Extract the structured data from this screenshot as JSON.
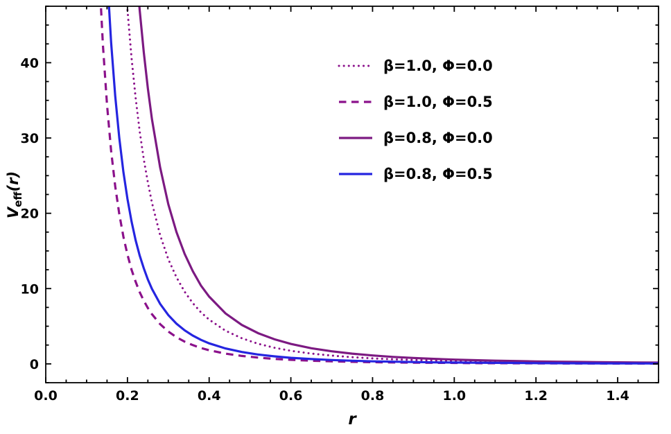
{
  "figure": {
    "background": "#ffffff",
    "frame_color": "#000000"
  },
  "chart_data": {
    "type": "line",
    "title": "",
    "xlabel": "r",
    "ylabel_main": "V",
    "ylabel_sub": "eff",
    "ylabel_suffix": "(r)",
    "xlim": [
      0,
      1.5
    ],
    "ylim": [
      -2.5,
      47.5
    ],
    "grid": false,
    "frame": true,
    "legend_position": "upper-right-inside",
    "xtick_minor_step": 0.05,
    "ytick_minor_step": 2.5,
    "xticks": [
      {
        "v": 0.0,
        "label": "0.0"
      },
      {
        "v": 0.2,
        "label": "0.2"
      },
      {
        "v": 0.4,
        "label": "0.4"
      },
      {
        "v": 0.6,
        "label": "0.6"
      },
      {
        "v": 0.8,
        "label": "0.8"
      },
      {
        "v": 1.0,
        "label": "1.0"
      },
      {
        "v": 1.2,
        "label": "1.2"
      },
      {
        "v": 1.4,
        "label": "1.4"
      }
    ],
    "yticks": [
      {
        "v": 0,
        "label": "0"
      },
      {
        "v": 10,
        "label": "10"
      },
      {
        "v": 20,
        "label": "20"
      },
      {
        "v": 30,
        "label": "30"
      },
      {
        "v": 40,
        "label": "40"
      }
    ],
    "series": [
      {
        "name": "beta-1.0-phi-0.0",
        "label": "β=1.0, Φ=0.0",
        "color": "#8B118B",
        "style": "dotted",
        "width": 3,
        "points": [
          [
            0.15,
            111
          ],
          [
            0.16,
            91.8
          ],
          [
            0.17,
            76.5
          ],
          [
            0.18,
            64.5
          ],
          [
            0.19,
            54.8
          ],
          [
            0.2,
            47.0
          ],
          [
            0.21,
            40.6
          ],
          [
            0.22,
            35.3
          ],
          [
            0.23,
            30.9
          ],
          [
            0.24,
            27.2
          ],
          [
            0.25,
            24.1
          ],
          [
            0.26,
            21.4
          ],
          [
            0.28,
            17.1
          ],
          [
            0.3,
            13.9
          ],
          [
            0.32,
            11.5
          ],
          [
            0.34,
            9.57
          ],
          [
            0.36,
            8.06
          ],
          [
            0.38,
            6.85
          ],
          [
            0.4,
            5.88
          ],
          [
            0.44,
            4.41
          ],
          [
            0.48,
            3.4
          ],
          [
            0.52,
            2.67
          ],
          [
            0.56,
            2.14
          ],
          [
            0.6,
            1.74
          ],
          [
            0.65,
            1.37
          ],
          [
            0.7,
            1.1
          ],
          [
            0.75,
            0.89
          ],
          [
            0.8,
            0.73
          ],
          [
            0.85,
            0.61
          ],
          [
            0.9,
            0.52
          ],
          [
            0.95,
            0.44
          ],
          [
            1.0,
            0.38
          ],
          [
            1.05,
            0.33
          ],
          [
            1.1,
            0.28
          ],
          [
            1.15,
            0.25
          ],
          [
            1.2,
            0.22
          ],
          [
            1.25,
            0.19
          ],
          [
            1.3,
            0.17
          ],
          [
            1.35,
            0.15
          ],
          [
            1.4,
            0.14
          ],
          [
            1.45,
            0.12
          ],
          [
            1.5,
            0.11
          ]
        ]
      },
      {
        "name": "beta-1.0-phi-0.5",
        "label": "β=1.0, Φ=0.5",
        "color": "#8B118B",
        "style": "dashed",
        "width": 3.2,
        "points": [
          [
            0.12,
            67.1
          ],
          [
            0.13,
            52.8
          ],
          [
            0.14,
            42.3
          ],
          [
            0.15,
            34.4
          ],
          [
            0.16,
            28.3
          ],
          [
            0.17,
            23.6
          ],
          [
            0.18,
            19.9
          ],
          [
            0.19,
            16.9
          ],
          [
            0.2,
            14.5
          ],
          [
            0.21,
            12.5
          ],
          [
            0.22,
            10.9
          ],
          [
            0.23,
            9.53
          ],
          [
            0.24,
            8.39
          ],
          [
            0.25,
            7.42
          ],
          [
            0.26,
            6.6
          ],
          [
            0.28,
            5.28
          ],
          [
            0.3,
            4.3
          ],
          [
            0.32,
            3.54
          ],
          [
            0.34,
            2.95
          ],
          [
            0.36,
            2.49
          ],
          [
            0.38,
            2.11
          ],
          [
            0.4,
            1.81
          ],
          [
            0.44,
            1.36
          ],
          [
            0.48,
            1.05
          ],
          [
            0.52,
            0.83
          ],
          [
            0.56,
            0.66
          ],
          [
            0.6,
            0.54
          ],
          [
            0.65,
            0.42
          ],
          [
            0.7,
            0.34
          ],
          [
            0.75,
            0.27
          ],
          [
            0.8,
            0.23
          ],
          [
            0.85,
            0.19
          ],
          [
            0.9,
            0.16
          ],
          [
            0.95,
            0.14
          ],
          [
            1.0,
            0.12
          ],
          [
            1.05,
            0.1
          ],
          [
            1.1,
            0.09
          ],
          [
            1.15,
            0.08
          ],
          [
            1.2,
            0.07
          ],
          [
            1.25,
            0.06
          ],
          [
            1.3,
            0.05
          ],
          [
            1.35,
            0.05
          ],
          [
            1.4,
            0.04
          ],
          [
            1.45,
            0.04
          ],
          [
            1.5,
            0.03
          ]
        ]
      },
      {
        "name": "beta-0.8-phi-0.0",
        "label": "β=0.8, Φ=0.0",
        "color": "#7C1A82",
        "style": "solid",
        "width": 3.2,
        "points": [
          [
            0.18,
            98.1
          ],
          [
            0.19,
            83.4
          ],
          [
            0.2,
            71.5
          ],
          [
            0.21,
            61.8
          ],
          [
            0.22,
            53.7
          ],
          [
            0.23,
            47.0
          ],
          [
            0.24,
            41.4
          ],
          [
            0.25,
            36.6
          ],
          [
            0.26,
            32.5
          ],
          [
            0.28,
            26.1
          ],
          [
            0.3,
            21.2
          ],
          [
            0.32,
            17.5
          ],
          [
            0.34,
            14.6
          ],
          [
            0.36,
            12.3
          ],
          [
            0.38,
            10.4
          ],
          [
            0.4,
            8.94
          ],
          [
            0.44,
            6.71
          ],
          [
            0.48,
            5.17
          ],
          [
            0.52,
            4.07
          ],
          [
            0.56,
            3.26
          ],
          [
            0.6,
            2.65
          ],
          [
            0.65,
            2.08
          ],
          [
            0.7,
            1.67
          ],
          [
            0.75,
            1.36
          ],
          [
            0.8,
            1.12
          ],
          [
            0.85,
            0.93
          ],
          [
            0.9,
            0.79
          ],
          [
            0.95,
            0.67
          ],
          [
            1.0,
            0.57
          ],
          [
            1.05,
            0.49
          ],
          [
            1.1,
            0.43
          ],
          [
            1.15,
            0.38
          ],
          [
            1.2,
            0.33
          ],
          [
            1.25,
            0.29
          ],
          [
            1.3,
            0.26
          ],
          [
            1.35,
            0.23
          ],
          [
            1.4,
            0.21
          ],
          [
            1.45,
            0.19
          ],
          [
            1.5,
            0.17
          ]
        ]
      },
      {
        "name": "beta-0.8-phi-0.5",
        "label": "β=0.8, Φ=0.5",
        "color": "#2525E0",
        "style": "solid",
        "width": 3.2,
        "points": [
          [
            0.13,
            79.7
          ],
          [
            0.14,
            63.8
          ],
          [
            0.15,
            51.9
          ],
          [
            0.16,
            42.7
          ],
          [
            0.17,
            35.6
          ],
          [
            0.18,
            30.0
          ],
          [
            0.19,
            25.5
          ],
          [
            0.2,
            21.9
          ],
          [
            0.21,
            18.9
          ],
          [
            0.22,
            16.4
          ],
          [
            0.23,
            14.4
          ],
          [
            0.24,
            12.7
          ],
          [
            0.25,
            11.2
          ],
          [
            0.26,
            9.96
          ],
          [
            0.28,
            7.97
          ],
          [
            0.3,
            6.48
          ],
          [
            0.32,
            5.34
          ],
          [
            0.34,
            4.45
          ],
          [
            0.36,
            3.75
          ],
          [
            0.38,
            3.19
          ],
          [
            0.4,
            2.73
          ],
          [
            0.44,
            2.05
          ],
          [
            0.48,
            1.58
          ],
          [
            0.52,
            1.24
          ],
          [
            0.56,
            1.0
          ],
          [
            0.6,
            0.81
          ],
          [
            0.65,
            0.64
          ],
          [
            0.7,
            0.51
          ],
          [
            0.75,
            0.42
          ],
          [
            0.8,
            0.34
          ],
          [
            0.85,
            0.29
          ],
          [
            0.9,
            0.24
          ],
          [
            0.95,
            0.2
          ],
          [
            1.0,
            0.18
          ],
          [
            1.05,
            0.15
          ],
          [
            1.1,
            0.13
          ],
          [
            1.15,
            0.12
          ],
          [
            1.2,
            0.1
          ],
          [
            1.25,
            0.09
          ],
          [
            1.3,
            0.08
          ],
          [
            1.35,
            0.07
          ],
          [
            1.4,
            0.06
          ],
          [
            1.45,
            0.06
          ],
          [
            1.5,
            0.05
          ]
        ]
      }
    ]
  }
}
